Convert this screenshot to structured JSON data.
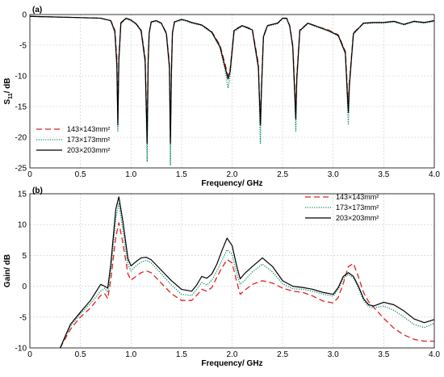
{
  "chart_data": [
    {
      "type": "line",
      "panel_label": "(a)",
      "xlabel": "Frequency/ GHz",
      "ylabel_main": "S",
      "ylabel_sub": "11",
      "ylabel_unit": "/ dB",
      "xlim": [
        0,
        4.0
      ],
      "ylim": [
        -25,
        0
      ],
      "xticks": [
        "0",
        "0.5",
        "1.0",
        "1.5",
        "2.0",
        "2.5",
        "3.0",
        "3.5",
        "4.0"
      ],
      "yticks": [
        "0",
        "-5",
        "-10",
        "-15",
        "-20",
        "-25"
      ],
      "grid": true,
      "legend_position": "bottom-left",
      "series": [
        {
          "name": "143×143mm²",
          "color": "#e0201c",
          "style": "dashed",
          "x": [
            0,
            0.5,
            0.7,
            0.8,
            0.84,
            0.86,
            0.87,
            0.88,
            0.9,
            0.95,
            1.0,
            1.05,
            1.1,
            1.14,
            1.16,
            1.17,
            1.18,
            1.2,
            1.25,
            1.3,
            1.35,
            1.38,
            1.39,
            1.4,
            1.41,
            1.43,
            1.5,
            1.55,
            1.6,
            1.7,
            1.8,
            1.88,
            1.93,
            1.96,
            1.98,
            2.02,
            2.1,
            2.2,
            2.26,
            2.28,
            2.29,
            2.31,
            2.35,
            2.45,
            2.5,
            2.54,
            2.57,
            2.6,
            2.62,
            2.63,
            2.64,
            2.67,
            2.75,
            2.85,
            2.95,
            3.05,
            3.12,
            3.14,
            3.15,
            3.16,
            3.2,
            3.3,
            3.4,
            3.5,
            3.6,
            3.7,
            3.8,
            3.9,
            4.0
          ],
          "y": [
            -0.3,
            -0.5,
            -0.6,
            -1.0,
            -2.5,
            -7,
            -17,
            -7,
            -1.3,
            -0.6,
            -0.9,
            -1.5,
            -2.5,
            -7,
            -20,
            -7,
            -3,
            -1.2,
            -1.0,
            -1.4,
            -3,
            -8,
            -20,
            -9,
            -3,
            -1.2,
            -0.8,
            -1.0,
            -1.3,
            -1.7,
            -2.8,
            -5,
            -8,
            -10,
            -9,
            -2.5,
            -1.8,
            -2.4,
            -8,
            -18,
            -12,
            -3.5,
            -1.8,
            -1.4,
            -0.6,
            -0.6,
            -1.8,
            -5,
            -12,
            -16,
            -10,
            -2.5,
            -1.4,
            -2.0,
            -2.5,
            -3.3,
            -6,
            -12,
            -15,
            -11,
            -3,
            -1.4,
            -1.3,
            -1.3,
            -1.1,
            -1.6,
            -1.1,
            -1.3,
            -1.0
          ]
        },
        {
          "name": "173×173mm²",
          "color": "#0f8a6a",
          "style": "dotted",
          "x": [
            0,
            0.5,
            0.7,
            0.8,
            0.84,
            0.86,
            0.87,
            0.88,
            0.9,
            0.95,
            1.0,
            1.05,
            1.1,
            1.14,
            1.16,
            1.17,
            1.18,
            1.2,
            1.25,
            1.3,
            1.35,
            1.38,
            1.39,
            1.4,
            1.41,
            1.43,
            1.5,
            1.55,
            1.6,
            1.7,
            1.8,
            1.88,
            1.93,
            1.96,
            1.98,
            2.02,
            2.1,
            2.2,
            2.26,
            2.28,
            2.29,
            2.31,
            2.35,
            2.45,
            2.5,
            2.54,
            2.57,
            2.6,
            2.62,
            2.63,
            2.64,
            2.67,
            2.75,
            2.85,
            2.95,
            3.05,
            3.12,
            3.14,
            3.15,
            3.16,
            3.2,
            3.3,
            3.4,
            3.5,
            3.6,
            3.7,
            3.8,
            3.9,
            4.0
          ],
          "y": [
            -0.3,
            -0.5,
            -0.6,
            -1.0,
            -3,
            -9,
            -19,
            -8,
            -1.5,
            -0.7,
            -1.0,
            -1.6,
            -2.8,
            -8,
            -24,
            -8,
            -3,
            -1.3,
            -1.1,
            -1.5,
            -3.2,
            -9,
            -24.5,
            -10,
            -3,
            -1.3,
            -0.9,
            -1.1,
            -1.4,
            -1.8,
            -3,
            -5.5,
            -9,
            -12,
            -10,
            -2.8,
            -1.9,
            -2.6,
            -9,
            -21,
            -13,
            -3.8,
            -1.9,
            -1.5,
            -0.7,
            -0.7,
            -2,
            -5.5,
            -14,
            -19,
            -11,
            -2.7,
            -1.5,
            -2.1,
            -2.7,
            -3.5,
            -6.5,
            -14,
            -18,
            -12,
            -3.2,
            -1.5,
            -1.4,
            -1.4,
            -1.2,
            -1.7,
            -1.2,
            -1.4,
            -1.1
          ]
        },
        {
          "name": "203×203mm²",
          "color": "#000000",
          "style": "solid",
          "x": [
            0,
            0.5,
            0.7,
            0.8,
            0.84,
            0.86,
            0.87,
            0.88,
            0.9,
            0.95,
            1.0,
            1.05,
            1.1,
            1.14,
            1.16,
            1.17,
            1.18,
            1.2,
            1.25,
            1.3,
            1.35,
            1.38,
            1.39,
            1.4,
            1.41,
            1.43,
            1.5,
            1.55,
            1.6,
            1.7,
            1.8,
            1.88,
            1.93,
            1.96,
            1.98,
            2.02,
            2.1,
            2.2,
            2.26,
            2.28,
            2.29,
            2.31,
            2.35,
            2.45,
            2.5,
            2.54,
            2.57,
            2.6,
            2.62,
            2.63,
            2.64,
            2.67,
            2.75,
            2.85,
            2.95,
            3.05,
            3.12,
            3.14,
            3.15,
            3.16,
            3.2,
            3.3,
            3.4,
            3.5,
            3.6,
            3.7,
            3.8,
            3.9,
            4.0
          ],
          "y": [
            -0.3,
            -0.5,
            -0.6,
            -1.0,
            -2.7,
            -8,
            -18,
            -7.5,
            -1.4,
            -0.6,
            -0.9,
            -1.5,
            -2.6,
            -7.5,
            -21,
            -7.5,
            -3,
            -1.2,
            -1.0,
            -1.4,
            -3.1,
            -8.5,
            -21,
            -9.5,
            -3,
            -1.2,
            -0.8,
            -1.0,
            -1.3,
            -1.7,
            -2.9,
            -5.2,
            -8.5,
            -10.5,
            -9.3,
            -2.6,
            -1.8,
            -2.5,
            -8.5,
            -18,
            -12.5,
            -3.6,
            -1.8,
            -1.4,
            -0.6,
            -0.6,
            -1.9,
            -5.2,
            -13,
            -17,
            -10.5,
            -2.6,
            -1.4,
            -2.0,
            -2.6,
            -3.4,
            -6.2,
            -13,
            -16,
            -11.5,
            -3.1,
            -1.4,
            -1.3,
            -1.3,
            -1.1,
            -1.6,
            -1.1,
            -1.3,
            -1.0
          ]
        }
      ]
    },
    {
      "type": "line",
      "panel_label": "(b)",
      "xlabel": "Frequency/ GHz",
      "ylabel": "Gain/ dB",
      "xlim": [
        0,
        4.0
      ],
      "ylim": [
        -10,
        15
      ],
      "xticks": [
        "0",
        "0.5",
        "1.0",
        "1.5",
        "2.0",
        "2.5",
        "3.0",
        "3.5",
        "4.0"
      ],
      "yticks": [
        "15",
        "10",
        "5",
        "0",
        "-5",
        "-10"
      ],
      "grid": true,
      "legend_position": "top-right",
      "series": [
        {
          "name": "143×143mm²",
          "color": "#e0201c",
          "style": "dashed",
          "x": [
            0.3,
            0.4,
            0.5,
            0.6,
            0.7,
            0.74,
            0.77,
            0.8,
            0.85,
            0.88,
            0.92,
            0.97,
            1.0,
            1.05,
            1.1,
            1.15,
            1.2,
            1.3,
            1.4,
            1.5,
            1.6,
            1.65,
            1.7,
            1.75,
            1.8,
            1.85,
            1.9,
            1.95,
            2.0,
            2.05,
            2.08,
            2.12,
            2.2,
            2.3,
            2.4,
            2.5,
            2.6,
            2.7,
            2.8,
            2.9,
            3.0,
            3.05,
            3.1,
            3.15,
            3.2,
            3.25,
            3.3,
            3.35,
            3.4,
            3.5,
            3.6,
            3.7,
            3.8,
            3.9,
            4.0
          ],
          "y": [
            -10,
            -7,
            -5,
            -3.5,
            -1.5,
            -1.2,
            -2,
            1,
            8,
            10.3,
            7,
            2,
            1.0,
            1.6,
            2.2,
            2.5,
            2.2,
            0.5,
            -1.2,
            -2.3,
            -2.3,
            -1.5,
            -0.5,
            -0.8,
            -0.2,
            1.5,
            3.0,
            4.3,
            3.8,
            0.5,
            -1.3,
            -0.7,
            0.3,
            0.9,
            0.5,
            -0.3,
            -0.8,
            -1.0,
            -1.6,
            -2.4,
            -2.7,
            -1.8,
            0.5,
            3.2,
            3.7,
            1.5,
            -1.0,
            -2.5,
            -3.4,
            -5.2,
            -6.8,
            -7.9,
            -8.6,
            -8.9,
            -8.9
          ]
        },
        {
          "name": "173×173mm²",
          "color": "#0f8a6a",
          "style": "dotted",
          "x": [
            0.3,
            0.4,
            0.5,
            0.6,
            0.7,
            0.74,
            0.77,
            0.8,
            0.85,
            0.88,
            0.92,
            0.97,
            1.0,
            1.05,
            1.1,
            1.15,
            1.2,
            1.3,
            1.4,
            1.5,
            1.6,
            1.65,
            1.7,
            1.75,
            1.8,
            1.85,
            1.9,
            1.95,
            2.0,
            2.05,
            2.08,
            2.12,
            2.2,
            2.3,
            2.4,
            2.5,
            2.6,
            2.7,
            2.8,
            2.9,
            3.0,
            3.05,
            3.1,
            3.15,
            3.2,
            3.25,
            3.3,
            3.35,
            3.4,
            3.5,
            3.6,
            3.7,
            3.8,
            3.9,
            4.0
          ],
          "y": [
            -10,
            -6.5,
            -4.5,
            -2.8,
            -0.8,
            -0.3,
            -1.0,
            2.5,
            11,
            13.5,
            9,
            3.5,
            2.5,
            3.3,
            3.9,
            4.2,
            3.8,
            2.0,
            0.2,
            -1.3,
            -1.5,
            -0.5,
            0.6,
            0.2,
            1.0,
            2.5,
            4.2,
            5.9,
            5.2,
            1.8,
            0.3,
            0.9,
            2.3,
            3.6,
            2.3,
            0.4,
            -0.4,
            -0.5,
            -0.8,
            -1.3,
            -1.6,
            -0.5,
            1.3,
            1.9,
            1.3,
            -0.3,
            -2.3,
            -3.3,
            -3.5,
            -3.2,
            -3.9,
            -5.0,
            -6.2,
            -6.7,
            -6.0
          ]
        },
        {
          "name": "203×203mm²",
          "color": "#000000",
          "style": "solid",
          "x": [
            0.3,
            0.4,
            0.5,
            0.6,
            0.7,
            0.74,
            0.77,
            0.8,
            0.85,
            0.88,
            0.92,
            0.97,
            1.0,
            1.05,
            1.1,
            1.15,
            1.2,
            1.3,
            1.4,
            1.5,
            1.6,
            1.65,
            1.7,
            1.75,
            1.8,
            1.85,
            1.9,
            1.95,
            2.0,
            2.05,
            2.08,
            2.12,
            2.2,
            2.3,
            2.4,
            2.5,
            2.6,
            2.7,
            2.8,
            2.9,
            3.0,
            3.05,
            3.1,
            3.15,
            3.2,
            3.25,
            3.3,
            3.35,
            3.4,
            3.5,
            3.6,
            3.7,
            3.8,
            3.9,
            4.0
          ],
          "y": [
            -10,
            -6.2,
            -4.2,
            -2.3,
            0.3,
            0.0,
            -0.3,
            3.5,
            12.5,
            14.5,
            10.5,
            4.5,
            3.3,
            4.0,
            4.6,
            4.7,
            4.3,
            2.6,
            0.9,
            -0.5,
            -0.8,
            0.2,
            1.6,
            1.3,
            2.0,
            3.6,
            5.8,
            7.8,
            6.6,
            3.0,
            1.2,
            2.0,
            3.2,
            4.6,
            3.2,
            0.9,
            0.0,
            -0.2,
            -0.5,
            -1.0,
            -1.3,
            -0.2,
            1.6,
            2.2,
            1.6,
            0.0,
            -2.0,
            -3.0,
            -3.2,
            -2.6,
            -3.0,
            -4.0,
            -5.3,
            -5.9,
            -5.4
          ]
        }
      ]
    }
  ]
}
